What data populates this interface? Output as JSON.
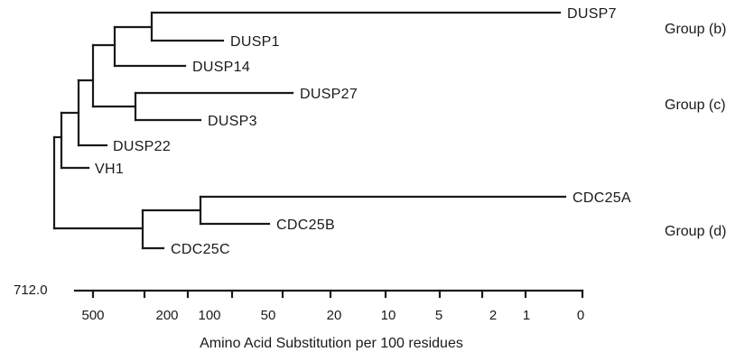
{
  "leaves": {
    "dusp7": "DUSP7",
    "dusp1": "DUSP1",
    "dusp14": "DUSP14",
    "dusp27": "DUSP27",
    "dusp3": "DUSP3",
    "dusp22": "DUSP22",
    "vh1": "VH1",
    "cdc25a": "CDC25A",
    "cdc25b": "CDC25B",
    "cdc25c": "CDC25C"
  },
  "groups": {
    "b": "Group (b)",
    "c": "Group (c)",
    "d": "Group (d)"
  },
  "axis": {
    "start_value": "712.0",
    "ticks": [
      "500",
      "200",
      "100",
      "50",
      "20",
      "10",
      "5",
      "2",
      "1",
      "0"
    ],
    "title": "Amino Acid Substitution per 100 residues"
  }
}
